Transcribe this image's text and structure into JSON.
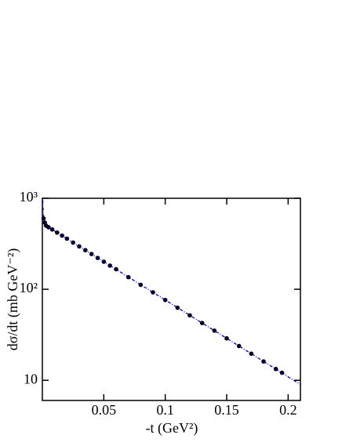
{
  "chart_data": {
    "type": "scatter",
    "xlabel": "-t (GeV²)",
    "ylabel": "dσ/dt (mb GeV⁻²)",
    "xlim": [
      0,
      0.21
    ],
    "ylim": [
      6,
      1000
    ],
    "ylog": true,
    "xticks": [
      0.05,
      0.1,
      0.15,
      0.2
    ],
    "yticks": [
      {
        "value": 10,
        "label": "10"
      },
      {
        "value": 100,
        "label": "10²"
      },
      {
        "value": 1000,
        "label": "10³"
      }
    ],
    "series": [
      {
        "type": "scatter",
        "color": "#000000",
        "x": [
          0.001,
          0.002,
          0.003,
          0.005,
          0.008,
          0.012,
          0.016,
          0.02,
          0.025,
          0.03,
          0.035,
          0.04,
          0.045,
          0.05,
          0.055,
          0.06,
          0.07,
          0.08,
          0.09,
          0.1,
          0.11,
          0.12,
          0.13,
          0.14,
          0.15,
          0.16,
          0.17,
          0.18,
          0.19,
          0.195
        ],
        "values": [
          600,
          540,
          500,
          481,
          454,
          420,
          389,
          360,
          326,
          296,
          269,
          244,
          221,
          201,
          182,
          166,
          136,
          112,
          92.6,
          76.2,
          62.7,
          51.7,
          42.6,
          35.1,
          28.9,
          23.8,
          19.6,
          16.1,
          13.3,
          12.1
        ]
      },
      {
        "type": "line",
        "color": "#0000cc",
        "x": [
          0.0003,
          0.0006,
          0.001,
          0.002,
          0.003,
          0.05,
          0.1,
          0.15,
          0.21
        ],
        "values": [
          950,
          780,
          640,
          560,
          500,
          201,
          76.2,
          28.9,
          9.0
        ]
      }
    ]
  }
}
